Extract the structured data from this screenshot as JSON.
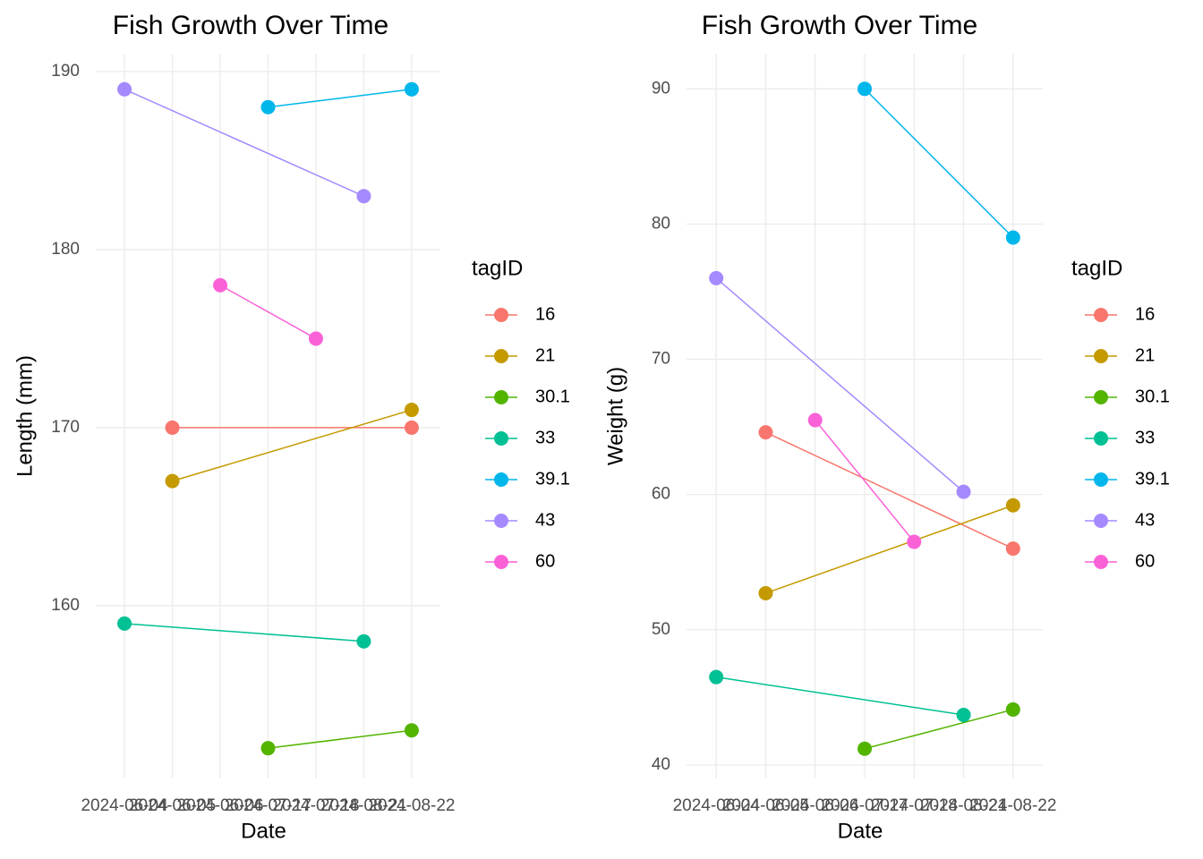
{
  "chart_data": [
    {
      "type": "line",
      "title": "Fish Growth Over Time",
      "x_label": "Date",
      "y_label": "Length (mm)",
      "legend_title": "tagID",
      "categories": [
        "2024-06-04",
        "2024-06-05",
        "2024-06-06",
        "2024-07-17",
        "2024-07-18",
        "2024-08-21",
        "2024-08-22"
      ],
      "ylim": [
        150.3,
        191
      ],
      "yticks": [
        160,
        170,
        180,
        190
      ],
      "grid": true,
      "legend": "right",
      "series": [
        {
          "name": "16",
          "color": "#F8766D",
          "x": [
            "2024-06-05",
            "2024-08-22"
          ],
          "values": [
            170,
            170
          ]
        },
        {
          "name": "21",
          "color": "#C49A00",
          "x": [
            "2024-06-05",
            "2024-08-22"
          ],
          "values": [
            167,
            171
          ]
        },
        {
          "name": "30.1",
          "color": "#53B400",
          "x": [
            "2024-07-17",
            "2024-08-22"
          ],
          "values": [
            152,
            153
          ]
        },
        {
          "name": "33",
          "color": "#00C094",
          "x": [
            "2024-06-04",
            "2024-08-21"
          ],
          "values": [
            159,
            158
          ]
        },
        {
          "name": "39.1",
          "color": "#00B6EB",
          "x": [
            "2024-07-17",
            "2024-08-22"
          ],
          "values": [
            188,
            189
          ]
        },
        {
          "name": "43",
          "color": "#A58AFF",
          "x": [
            "2024-06-04",
            "2024-08-21"
          ],
          "values": [
            189,
            183
          ]
        },
        {
          "name": "60",
          "color": "#FB61D7",
          "x": [
            "2024-06-06",
            "2024-07-18"
          ],
          "values": [
            178,
            175
          ]
        }
      ]
    },
    {
      "type": "line",
      "title": "Fish Growth Over Time",
      "x_label": "Date",
      "y_label": "Weight (g)",
      "legend_title": "tagID",
      "categories": [
        "2024-06-04",
        "2024-06-05",
        "2024-06-06",
        "2024-07-17",
        "2024-07-18",
        "2024-08-21",
        "2024-08-22"
      ],
      "ylim": [
        39,
        92.6
      ],
      "yticks": [
        40,
        50,
        60,
        70,
        80,
        90
      ],
      "grid": true,
      "legend": "right",
      "series": [
        {
          "name": "16",
          "color": "#F8766D",
          "x": [
            "2024-06-05",
            "2024-08-22"
          ],
          "values": [
            64.6,
            56.0
          ]
        },
        {
          "name": "21",
          "color": "#C49A00",
          "x": [
            "2024-06-05",
            "2024-08-22"
          ],
          "values": [
            52.7,
            59.2
          ]
        },
        {
          "name": "30.1",
          "color": "#53B400",
          "x": [
            "2024-07-17",
            "2024-08-22"
          ],
          "values": [
            41.2,
            44.1
          ]
        },
        {
          "name": "33",
          "color": "#00C094",
          "x": [
            "2024-06-04",
            "2024-08-21"
          ],
          "values": [
            46.5,
            43.7
          ]
        },
        {
          "name": "39.1",
          "color": "#00B6EB",
          "x": [
            "2024-07-17",
            "2024-08-22"
          ],
          "values": [
            90,
            79
          ]
        },
        {
          "name": "43",
          "color": "#A58AFF",
          "x": [
            "2024-06-04",
            "2024-08-21"
          ],
          "values": [
            76,
            60.2
          ]
        },
        {
          "name": "60",
          "color": "#FB61D7",
          "x": [
            "2024-06-06",
            "2024-07-18"
          ],
          "values": [
            65.5,
            56.5
          ]
        }
      ]
    }
  ]
}
